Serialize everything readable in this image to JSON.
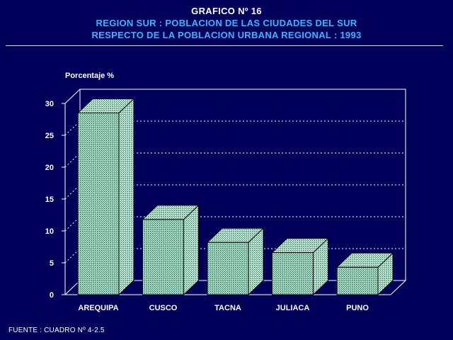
{
  "header": {
    "line1": "GRAFICO Nº 16",
    "line2": "REGION SUR : POBLACION DE LAS CIUDADES DEL SUR",
    "line3": "RESPECTO DE LA POBLACION URBANA REGIONAL : 1993"
  },
  "footer": {
    "source": "FUENTE : CUADRO Nº 4-2.5"
  },
  "colors": {
    "background": "#00005a",
    "bar_front": "#a6d7c0",
    "bar_side": "#bfe6d2",
    "bar_pattern": "#2a6a5a",
    "axis": "#ffffff"
  },
  "chart_data": {
    "type": "bar",
    "title": "GRAFICO Nº 16",
    "ylabel": "Porcentaje %",
    "xlabel": "",
    "categories": [
      "AREQUIPA",
      "CUSCO",
      "TACNA",
      "JULIACA",
      "PUNO"
    ],
    "values": [
      28.5,
      11.8,
      8.2,
      6.6,
      4.3
    ],
    "ylim": [
      0,
      30
    ],
    "yticks": [
      0,
      5,
      10,
      15,
      20,
      25,
      30
    ],
    "grid": true,
    "style": "3d"
  }
}
